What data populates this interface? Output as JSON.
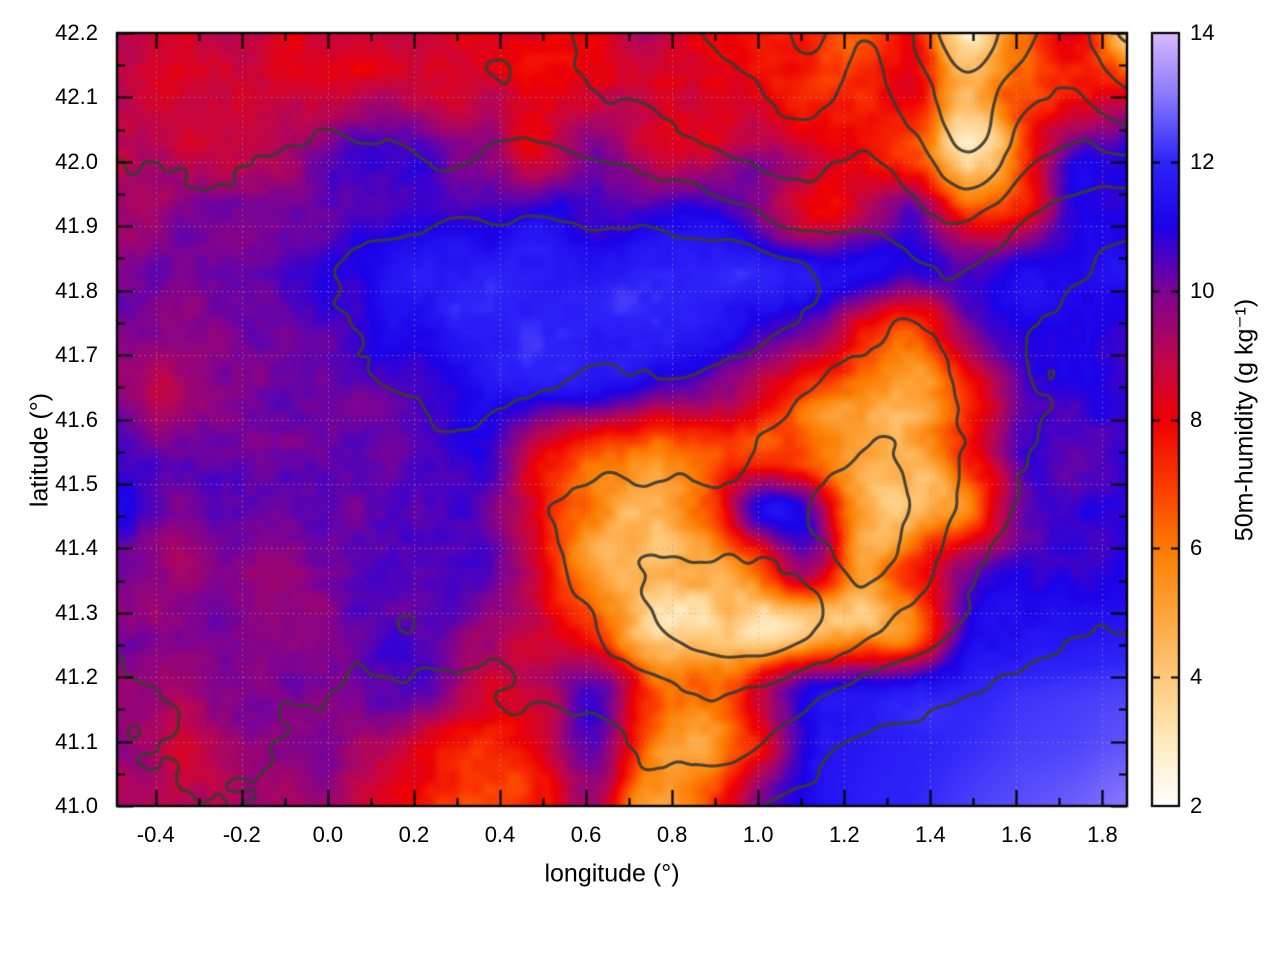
{
  "chart_data": {
    "type": "heatmap",
    "title": "",
    "xlabel": "longitude (°)",
    "ylabel": "latitude (°)",
    "colorbar_label": "50m-humidity (g kg⁻¹)",
    "x_range": [
      -0.49,
      1.857
    ],
    "y_range": [
      41.0,
      42.2
    ],
    "colorbar_range": [
      2,
      14
    ],
    "grid_on": true,
    "legend_position": "right-colorbar",
    "x_tick_values": [
      -0.4,
      -0.2,
      0.0,
      0.2,
      0.4,
      0.6,
      0.8,
      1.0,
      1.2,
      1.4,
      1.6,
      1.8
    ],
    "x_tick_labels": [
      "-0.4",
      "-0.2",
      "0.0",
      "0.2",
      "0.4",
      "0.6",
      "0.8",
      "1.0",
      "1.2",
      "1.4",
      "1.6",
      "1.8"
    ],
    "y_tick_values": [
      41.0,
      41.1,
      41.2,
      41.3,
      41.4,
      41.5,
      41.6,
      41.7,
      41.8,
      41.9,
      42.0,
      42.1,
      42.2
    ],
    "y_tick_labels": [
      "41.0",
      "41.1",
      "41.2",
      "41.3",
      "41.4",
      "41.5",
      "41.6",
      "41.7",
      "41.8",
      "41.9",
      "42.0",
      "42.1",
      "42.2"
    ],
    "colorbar_tick_values": [
      2,
      4,
      6,
      8,
      10,
      12,
      14
    ],
    "colorbar_tick_labels": [
      "2",
      "4",
      "6",
      "8",
      "10",
      "12",
      "14"
    ],
    "palette": [
      {
        "v": 2,
        "c": "#ffffff"
      },
      {
        "v": 3,
        "c": "#ffeabf"
      },
      {
        "v": 4,
        "c": "#ffc97a"
      },
      {
        "v": 5,
        "c": "#fda43a"
      },
      {
        "v": 6,
        "c": "#fc7c00"
      },
      {
        "v": 7,
        "c": "#fb3a00"
      },
      {
        "v": 8,
        "c": "#ee0004"
      },
      {
        "v": 9,
        "c": "#bb0650"
      },
      {
        "v": 10,
        "c": "#7c0394"
      },
      {
        "v": 11,
        "c": "#1c02e8"
      },
      {
        "v": 12,
        "c": "#2d24f8"
      },
      {
        "v": 13,
        "c": "#8677fe"
      },
      {
        "v": 14,
        "c": "#dab9fe"
      }
    ],
    "contour_color": "#3b3b33",
    "contour_levels": [
      10,
      350,
      600,
      850,
      1100,
      1400,
      1700
    ],
    "humidity_grid": {
      "cols": 20,
      "rows": 14,
      "lon_min": -0.49,
      "lon_max": 1.857,
      "lat_top": 42.2,
      "lat_bottom": 41.0,
      "values": [
        [
          9.0,
          8.7,
          8.8,
          8.5,
          8.6,
          8.4,
          8.6,
          8.3,
          8.0,
          8.2,
          9.2,
          8.0,
          7.5,
          7.8,
          6.5,
          8.0,
          3.5,
          6.0,
          8.0,
          3.8
        ],
        [
          8.8,
          8.6,
          8.9,
          8.7,
          8.5,
          8.8,
          8.5,
          8.7,
          8.3,
          8.6,
          8.8,
          8.2,
          8.5,
          7.0,
          7.6,
          8.3,
          4.2,
          7.0,
          7.5,
          8.0
        ],
        [
          8.9,
          9.0,
          8.8,
          9.2,
          10.3,
          10.6,
          10.2,
          9.6,
          8.4,
          10.2,
          9.0,
          8.6,
          9.5,
          9.0,
          8.0,
          7.0,
          3.0,
          6.5,
          10.5,
          10.8
        ],
        [
          9.4,
          9.7,
          9.9,
          10.0,
          10.4,
          10.5,
          10.6,
          10.8,
          11.0,
          10.4,
          10.8,
          11.2,
          10.2,
          8.2,
          8.6,
          10.4,
          7.5,
          8.0,
          10.6,
          11.0
        ],
        [
          9.9,
          10.0,
          10.1,
          10.3,
          10.8,
          11.4,
          11.7,
          11.8,
          11.9,
          11.8,
          11.9,
          11.8,
          11.9,
          11.7,
          11.4,
          10.8,
          10.4,
          11.2,
          10.9,
          11.3
        ],
        [
          10.0,
          9.6,
          10.0,
          10.2,
          10.6,
          11.0,
          11.5,
          11.8,
          11.9,
          11.9,
          11.8,
          11.5,
          11.0,
          10.2,
          8.0,
          6.8,
          9.5,
          10.9,
          11.0,
          10.6
        ],
        [
          10.0,
          9.0,
          9.9,
          10.1,
          10.2,
          10.4,
          10.8,
          11.4,
          11.6,
          11.3,
          10.6,
          9.8,
          9.0,
          7.2,
          5.8,
          5.2,
          7.4,
          10.4,
          10.9,
          10.5
        ],
        [
          10.8,
          10.1,
          10.0,
          10.1,
          10.1,
          10.3,
          10.7,
          10.9,
          8.2,
          6.8,
          5.8,
          6.4,
          7.0,
          6.2,
          4.6,
          4.4,
          7.5,
          10.6,
          10.4,
          10.9
        ],
        [
          10.9,
          10.0,
          10.2,
          10.0,
          10.1,
          10.5,
          10.6,
          10.2,
          7.8,
          5.6,
          4.8,
          6.0,
          10.8,
          10.6,
          5.0,
          4.2,
          6.0,
          9.8,
          10.6,
          10.7
        ],
        [
          9.8,
          9.6,
          9.9,
          9.7,
          9.9,
          10.3,
          10.4,
          10.5,
          8.0,
          4.9,
          4.4,
          4.6,
          6.5,
          9.5,
          5.4,
          7.5,
          10.0,
          10.9,
          10.6,
          11.0
        ],
        [
          9.9,
          9.7,
          10.0,
          9.8,
          10.0,
          10.4,
          10.5,
          9.3,
          8.8,
          6.8,
          4.0,
          3.8,
          3.7,
          4.2,
          4.8,
          5.5,
          10.8,
          11.3,
          11.4,
          11.6
        ],
        [
          9.8,
          9.5,
          9.8,
          10.0,
          10.1,
          10.4,
          10.2,
          8.6,
          9.0,
          10.6,
          7.0,
          6.2,
          8.0,
          10.8,
          11.2,
          11.6,
          11.9,
          12.1,
          12.2,
          12.3
        ],
        [
          9.6,
          8.8,
          9.5,
          9.7,
          9.9,
          9.0,
          7.8,
          7.0,
          8.2,
          10.4,
          6.5,
          4.8,
          7.5,
          11.0,
          11.6,
          11.9,
          12.1,
          12.3,
          12.4,
          12.6
        ],
        [
          9.4,
          9.0,
          9.3,
          9.6,
          9.3,
          8.4,
          7.2,
          6.4,
          7.6,
          9.2,
          4.6,
          6.8,
          9.8,
          11.2,
          11.8,
          12.0,
          12.3,
          12.5,
          12.7,
          13.0
        ]
      ]
    },
    "terrain_grid": {
      "cols": 20,
      "rows": 14,
      "values": [
        [
          800,
          700,
          750,
          650,
          700,
          750,
          800,
          850,
          800,
          900,
          1000,
          1100,
          1200,
          1500,
          1100,
          1400,
          1900,
          1500,
          1300,
          1700
        ],
        [
          700,
          680,
          720,
          700,
          650,
          700,
          750,
          800,
          750,
          850,
          900,
          1000,
          1100,
          1200,
          1000,
          1300,
          1600,
          1200,
          1100,
          1400
        ],
        [
          600,
          620,
          650,
          600,
          550,
          600,
          650,
          600,
          550,
          650,
          700,
          800,
          900,
          950,
          850,
          1000,
          1400,
          1000,
          800,
          900
        ],
        [
          550,
          560,
          540,
          520,
          480,
          450,
          400,
          380,
          350,
          400,
          450,
          500,
          600,
          700,
          650,
          800,
          900,
          700,
          500,
          450
        ],
        [
          500,
          520,
          490,
          450,
          350,
          280,
          220,
          180,
          160,
          170,
          180,
          200,
          250,
          350,
          450,
          550,
          600,
          450,
          350,
          300
        ],
        [
          480,
          500,
          510,
          480,
          420,
          300,
          240,
          200,
          180,
          200,
          220,
          260,
          300,
          400,
          550,
          650,
          500,
          380,
          300,
          250
        ],
        [
          450,
          480,
          520,
          500,
          450,
          380,
          320,
          300,
          350,
          400,
          380,
          420,
          500,
          600,
          700,
          750,
          550,
          400,
          280,
          220
        ],
        [
          420,
          460,
          500,
          480,
          440,
          400,
          380,
          420,
          500,
          550,
          520,
          560,
          620,
          750,
          850,
          800,
          600,
          350,
          250,
          200
        ],
        [
          400,
          440,
          470,
          450,
          430,
          420,
          400,
          450,
          550,
          650,
          700,
          650,
          700,
          850,
          950,
          850,
          550,
          300,
          200,
          150
        ],
        [
          380,
          420,
          450,
          430,
          420,
          400,
          380,
          420,
          520,
          700,
          850,
          900,
          850,
          800,
          900,
          700,
          400,
          250,
          150,
          100
        ],
        [
          360,
          400,
          430,
          420,
          400,
          380,
          350,
          380,
          450,
          600,
          800,
          1000,
          1050,
          900,
          700,
          500,
          300,
          150,
          50,
          -20
        ],
        [
          340,
          380,
          400,
          390,
          380,
          350,
          300,
          320,
          380,
          450,
          550,
          650,
          600,
          450,
          300,
          150,
          20,
          -30,
          -50,
          -60
        ],
        [
          320,
          350,
          370,
          360,
          340,
          300,
          250,
          280,
          350,
          300,
          400,
          450,
          350,
          150,
          -20,
          -40,
          -60,
          -70,
          -80,
          -90
        ],
        [
          300,
          330,
          350,
          340,
          300,
          250,
          200,
          220,
          300,
          250,
          300,
          200,
          40,
          -30,
          -60,
          -70,
          -80,
          -90,
          -100,
          -110
        ]
      ]
    }
  }
}
